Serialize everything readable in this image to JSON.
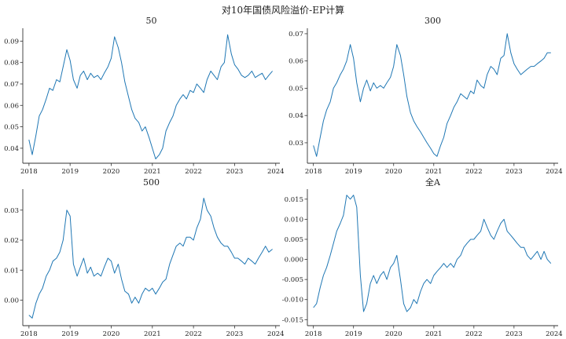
{
  "figure": {
    "suptitle": "对10年国债风险溢价-EP计算",
    "line_color": "#1f77b4"
  },
  "chart_data": [
    {
      "type": "line",
      "title": "50",
      "xlabel": "",
      "ylabel": "",
      "x_ticks": [
        "2018",
        "2019",
        "2020",
        "2021",
        "2022",
        "2023",
        "2024"
      ],
      "y_ticks": [
        0.04,
        0.05,
        0.06,
        0.07,
        0.08,
        0.09
      ],
      "y_tick_labels": [
        "0.04",
        "0.05",
        "0.06",
        "0.07",
        "0.08",
        "0.09"
      ],
      "xlim": [
        2017.85,
        2024.1
      ],
      "ylim": [
        0.033,
        0.096
      ],
      "grid": false,
      "series": [
        {
          "x": [
            2018.0,
            2018.08,
            2018.17,
            2018.25,
            2018.33,
            2018.42,
            2018.5,
            2018.58,
            2018.67,
            2018.75,
            2018.83,
            2018.92,
            2019.0,
            2019.08,
            2019.17,
            2019.25,
            2019.33,
            2019.42,
            2019.5,
            2019.58,
            2019.67,
            2019.75,
            2019.83,
            2019.92,
            2020.0,
            2020.08,
            2020.17,
            2020.25,
            2020.33,
            2020.42,
            2020.5,
            2020.58,
            2020.67,
            2020.75,
            2020.83,
            2020.92,
            2021.0,
            2021.08,
            2021.17,
            2021.25,
            2021.33,
            2021.42,
            2021.5,
            2021.58,
            2021.67,
            2021.75,
            2021.83,
            2021.92,
            2022.0,
            2022.08,
            2022.17,
            2022.25,
            2022.33,
            2022.42,
            2022.5,
            2022.58,
            2022.67,
            2022.75,
            2022.83,
            2022.92,
            2023.0,
            2023.08,
            2023.17,
            2023.25,
            2023.33,
            2023.42,
            2023.5,
            2023.58,
            2023.67,
            2023.75,
            2023.83,
            2023.92
          ],
          "y": [
            0.044,
            0.037,
            0.046,
            0.055,
            0.058,
            0.063,
            0.068,
            0.067,
            0.072,
            0.071,
            0.078,
            0.086,
            0.081,
            0.072,
            0.068,
            0.074,
            0.076,
            0.072,
            0.075,
            0.073,
            0.074,
            0.072,
            0.075,
            0.078,
            0.082,
            0.092,
            0.087,
            0.08,
            0.071,
            0.064,
            0.058,
            0.054,
            0.052,
            0.048,
            0.05,
            0.045,
            0.04,
            0.035,
            0.037,
            0.04,
            0.048,
            0.052,
            0.055,
            0.06,
            0.063,
            0.065,
            0.063,
            0.067,
            0.066,
            0.07,
            0.068,
            0.066,
            0.072,
            0.076,
            0.074,
            0.072,
            0.078,
            0.08,
            0.093,
            0.084,
            0.079,
            0.077,
            0.074,
            0.073,
            0.074,
            0.076,
            0.073,
            0.074,
            0.075,
            0.072,
            0.074,
            0.076
          ]
        }
      ]
    },
    {
      "type": "line",
      "title": "300",
      "xlabel": "",
      "ylabel": "",
      "x_ticks": [
        "2018",
        "2019",
        "2020",
        "2021",
        "2022",
        "2023",
        "2024"
      ],
      "y_ticks": [
        0.03,
        0.04,
        0.05,
        0.06,
        0.07
      ],
      "y_tick_labels": [
        "0.03",
        "0.04",
        "0.05",
        "0.06",
        "0.07"
      ],
      "xlim": [
        2017.85,
        2024.1
      ],
      "ylim": [
        0.0225,
        0.072
      ],
      "grid": false,
      "series": [
        {
          "x": [
            2018.0,
            2018.08,
            2018.17,
            2018.25,
            2018.33,
            2018.42,
            2018.5,
            2018.58,
            2018.67,
            2018.75,
            2018.83,
            2018.92,
            2019.0,
            2019.08,
            2019.17,
            2019.25,
            2019.33,
            2019.42,
            2019.5,
            2019.58,
            2019.67,
            2019.75,
            2019.83,
            2019.92,
            2020.0,
            2020.08,
            2020.17,
            2020.25,
            2020.33,
            2020.42,
            2020.5,
            2020.58,
            2020.67,
            2020.75,
            2020.83,
            2020.92,
            2021.0,
            2021.08,
            2021.17,
            2021.25,
            2021.33,
            2021.42,
            2021.5,
            2021.58,
            2021.67,
            2021.75,
            2021.83,
            2021.92,
            2022.0,
            2022.08,
            2022.17,
            2022.25,
            2022.33,
            2022.42,
            2022.5,
            2022.58,
            2022.67,
            2022.75,
            2022.83,
            2022.92,
            2023.0,
            2023.08,
            2023.17,
            2023.25,
            2023.33,
            2023.42,
            2023.5,
            2023.58,
            2023.67,
            2023.75,
            2023.83,
            2023.92
          ],
          "y": [
            0.029,
            0.025,
            0.032,
            0.038,
            0.042,
            0.045,
            0.05,
            0.052,
            0.055,
            0.057,
            0.06,
            0.066,
            0.061,
            0.052,
            0.045,
            0.05,
            0.053,
            0.049,
            0.052,
            0.05,
            0.051,
            0.05,
            0.052,
            0.054,
            0.058,
            0.066,
            0.062,
            0.055,
            0.047,
            0.041,
            0.038,
            0.036,
            0.034,
            0.032,
            0.03,
            0.028,
            0.026,
            0.025,
            0.029,
            0.032,
            0.037,
            0.04,
            0.043,
            0.045,
            0.048,
            0.047,
            0.046,
            0.049,
            0.048,
            0.053,
            0.051,
            0.05,
            0.055,
            0.058,
            0.057,
            0.055,
            0.061,
            0.062,
            0.07,
            0.063,
            0.059,
            0.057,
            0.055,
            0.056,
            0.057,
            0.058,
            0.058,
            0.059,
            0.06,
            0.061,
            0.063,
            0.063
          ]
        }
      ]
    },
    {
      "type": "line",
      "title": "500",
      "xlabel": "",
      "ylabel": "",
      "x_ticks": [
        "2018",
        "2019",
        "2020",
        "2021",
        "2022",
        "2023",
        "2024"
      ],
      "y_ticks": [
        0.0,
        0.01,
        0.02,
        0.03
      ],
      "y_tick_labels": [
        "0.00",
        "0.01",
        "0.02",
        "0.03"
      ],
      "xlim": [
        2017.85,
        2024.1
      ],
      "ylim": [
        -0.0085,
        0.037
      ],
      "grid": false,
      "series": [
        {
          "x": [
            2018.0,
            2018.08,
            2018.17,
            2018.25,
            2018.33,
            2018.42,
            2018.5,
            2018.58,
            2018.67,
            2018.75,
            2018.83,
            2018.92,
            2019.0,
            2019.08,
            2019.17,
            2019.25,
            2019.33,
            2019.42,
            2019.5,
            2019.58,
            2019.67,
            2019.75,
            2019.83,
            2019.92,
            2020.0,
            2020.08,
            2020.17,
            2020.25,
            2020.33,
            2020.42,
            2020.5,
            2020.58,
            2020.67,
            2020.75,
            2020.83,
            2020.92,
            2021.0,
            2021.08,
            2021.17,
            2021.25,
            2021.33,
            2021.42,
            2021.5,
            2021.58,
            2021.67,
            2021.75,
            2021.83,
            2021.92,
            2022.0,
            2022.08,
            2022.17,
            2022.25,
            2022.33,
            2022.42,
            2022.5,
            2022.58,
            2022.67,
            2022.75,
            2022.83,
            2022.92,
            2023.0,
            2023.08,
            2023.17,
            2023.25,
            2023.33,
            2023.42,
            2023.5,
            2023.58,
            2023.67,
            2023.75,
            2023.83,
            2023.92
          ],
          "y": [
            -0.005,
            -0.006,
            -0.001,
            0.002,
            0.004,
            0.008,
            0.01,
            0.013,
            0.014,
            0.016,
            0.02,
            0.03,
            0.028,
            0.012,
            0.008,
            0.011,
            0.014,
            0.009,
            0.011,
            0.008,
            0.009,
            0.008,
            0.011,
            0.014,
            0.013,
            0.009,
            0.012,
            0.007,
            0.003,
            0.002,
            -0.001,
            0.001,
            -0.001,
            0.002,
            0.004,
            0.003,
            0.004,
            0.002,
            0.004,
            0.006,
            0.007,
            0.012,
            0.015,
            0.018,
            0.019,
            0.018,
            0.021,
            0.021,
            0.02,
            0.024,
            0.027,
            0.034,
            0.03,
            0.028,
            0.024,
            0.021,
            0.019,
            0.018,
            0.018,
            0.016,
            0.014,
            0.014,
            0.013,
            0.012,
            0.014,
            0.013,
            0.012,
            0.014,
            0.016,
            0.018,
            0.016,
            0.017
          ]
        }
      ]
    },
    {
      "type": "line",
      "title": "全A",
      "xlabel": "",
      "ylabel": "",
      "x_ticks": [
        "2018",
        "2019",
        "2020",
        "2021",
        "2022",
        "2023",
        "2024"
      ],
      "y_ticks": [
        -0.015,
        -0.01,
        -0.005,
        0.0,
        0.005,
        0.01,
        0.015
      ],
      "y_tick_labels": [
        "-0.015",
        "-0.010",
        "-0.005",
        "0.000",
        "0.005",
        "0.010",
        "0.015"
      ],
      "xlim": [
        2017.85,
        2024.1
      ],
      "ylim": [
        -0.0165,
        0.0175
      ],
      "grid": false,
      "series": [
        {
          "x": [
            2018.0,
            2018.08,
            2018.17,
            2018.25,
            2018.33,
            2018.42,
            2018.5,
            2018.58,
            2018.67,
            2018.75,
            2018.83,
            2018.92,
            2019.0,
            2019.08,
            2019.17,
            2019.25,
            2019.33,
            2019.42,
            2019.5,
            2019.58,
            2019.67,
            2019.75,
            2019.83,
            2019.92,
            2020.0,
            2020.08,
            2020.17,
            2020.25,
            2020.33,
            2020.42,
            2020.5,
            2020.58,
            2020.67,
            2020.75,
            2020.83,
            2020.92,
            2021.0,
            2021.08,
            2021.17,
            2021.25,
            2021.33,
            2021.42,
            2021.5,
            2021.58,
            2021.67,
            2021.75,
            2021.83,
            2021.92,
            2022.0,
            2022.08,
            2022.17,
            2022.25,
            2022.33,
            2022.42,
            2022.5,
            2022.58,
            2022.67,
            2022.75,
            2022.83,
            2022.92,
            2023.0,
            2023.08,
            2023.17,
            2023.25,
            2023.33,
            2023.42,
            2023.5,
            2023.58,
            2023.67,
            2023.75,
            2023.83,
            2023.92
          ],
          "y": [
            -0.012,
            -0.011,
            -0.007,
            -0.004,
            -0.002,
            0.001,
            0.004,
            0.007,
            0.009,
            0.011,
            0.016,
            0.015,
            0.016,
            0.013,
            -0.004,
            -0.013,
            -0.011,
            -0.006,
            -0.004,
            -0.006,
            -0.004,
            -0.003,
            -0.005,
            -0.002,
            -0.001,
            0.001,
            -0.005,
            -0.011,
            -0.013,
            -0.012,
            -0.01,
            -0.011,
            -0.008,
            -0.006,
            -0.005,
            -0.006,
            -0.004,
            -0.003,
            -0.002,
            -0.001,
            -0.002,
            -0.001,
            -0.002,
            0.0,
            0.001,
            0.003,
            0.004,
            0.005,
            0.005,
            0.006,
            0.007,
            0.01,
            0.008,
            0.006,
            0.005,
            0.007,
            0.009,
            0.01,
            0.007,
            0.006,
            0.005,
            0.004,
            0.003,
            0.003,
            0.001,
            0.0,
            0.001,
            0.002,
            0.0,
            0.002,
            0.0,
            -0.001
          ]
        }
      ]
    }
  ]
}
